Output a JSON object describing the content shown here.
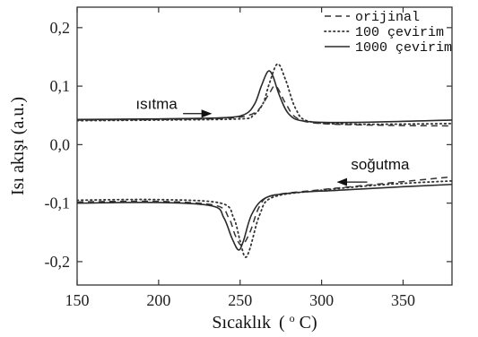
{
  "chart_data": {
    "type": "line",
    "xlabel": "Sıcaklık",
    "xlabel_unit_open": "(",
    "xlabel_unit_sup": "o",
    "xlabel_unit_close": "C)",
    "ylabel": "Isı akışı (a.u.)",
    "xlim": [
      150,
      380
    ],
    "ylim": [
      -0.24,
      0.235
    ],
    "x_ticks": [
      150,
      200,
      250,
      300,
      350
    ],
    "x_tick_labels": [
      "150",
      "200",
      "250",
      "300",
      "350"
    ],
    "y_ticks": [
      0.2,
      0.1,
      0.0,
      -0.1,
      -0.2
    ],
    "y_tick_labels": [
      "0,2",
      "0,1",
      "0,0",
      "-0,1",
      "-0,2"
    ],
    "grid": false,
    "legend_position": "top-right",
    "annotations": [
      {
        "text": "ısıtma",
        "x": 186,
        "y": 0.061,
        "arrow_from": [
          215,
          0.053
        ],
        "arrow_to": [
          232,
          0.053
        ],
        "direction": "right"
      },
      {
        "text": "soğutma",
        "x": 318,
        "y": -0.042,
        "arrow_from": [
          328,
          -0.064
        ],
        "arrow_to": [
          310,
          -0.064
        ],
        "direction": "left"
      }
    ],
    "series": [
      {
        "name": "orijinal",
        "style": "dashed",
        "heating": {
          "x": [
            150,
            200,
            240,
            255,
            262,
            268,
            272,
            278,
            285,
            300,
            340,
            380
          ],
          "y": [
            0.042,
            0.043,
            0.045,
            0.05,
            0.062,
            0.088,
            0.1,
            0.07,
            0.045,
            0.036,
            0.033,
            0.032
          ]
        },
        "cooling": {
          "x": [
            150,
            200,
            235,
            243,
            247,
            251,
            256,
            262,
            270,
            300,
            340,
            380
          ],
          "y": [
            -0.098,
            -0.097,
            -0.104,
            -0.125,
            -0.155,
            -0.172,
            -0.15,
            -0.105,
            -0.087,
            -0.077,
            -0.066,
            -0.055
          ]
        }
      },
      {
        "name": "100 çevirim",
        "style": "dotted",
        "heating": {
          "x": [
            150,
            200,
            250,
            258,
            264,
            268,
            273,
            278,
            284,
            292,
            320,
            380
          ],
          "y": [
            0.041,
            0.042,
            0.044,
            0.05,
            0.07,
            0.105,
            0.138,
            0.11,
            0.062,
            0.04,
            0.035,
            0.036
          ]
        },
        "cooling": {
          "x": [
            150,
            200,
            238,
            246,
            250,
            253,
            256,
            262,
            270,
            300,
            340,
            380
          ],
          "y": [
            -0.095,
            -0.094,
            -0.1,
            -0.125,
            -0.165,
            -0.192,
            -0.178,
            -0.12,
            -0.09,
            -0.078,
            -0.068,
            -0.062
          ]
        }
      },
      {
        "name": "1000 çevirim",
        "style": "solid",
        "heating": {
          "x": [
            150,
            200,
            240,
            253,
            259,
            263,
            267,
            270,
            274,
            280,
            290,
            320,
            380
          ],
          "y": [
            0.043,
            0.044,
            0.046,
            0.052,
            0.07,
            0.1,
            0.125,
            0.118,
            0.085,
            0.052,
            0.04,
            0.038,
            0.042
          ]
        },
        "cooling": {
          "x": [
            150,
            200,
            233,
            240,
            245,
            249,
            252,
            257,
            265,
            280,
            310,
            350,
            380
          ],
          "y": [
            -0.1,
            -0.099,
            -0.105,
            -0.125,
            -0.16,
            -0.18,
            -0.165,
            -0.12,
            -0.092,
            -0.083,
            -0.078,
            -0.072,
            -0.068
          ]
        }
      }
    ]
  }
}
